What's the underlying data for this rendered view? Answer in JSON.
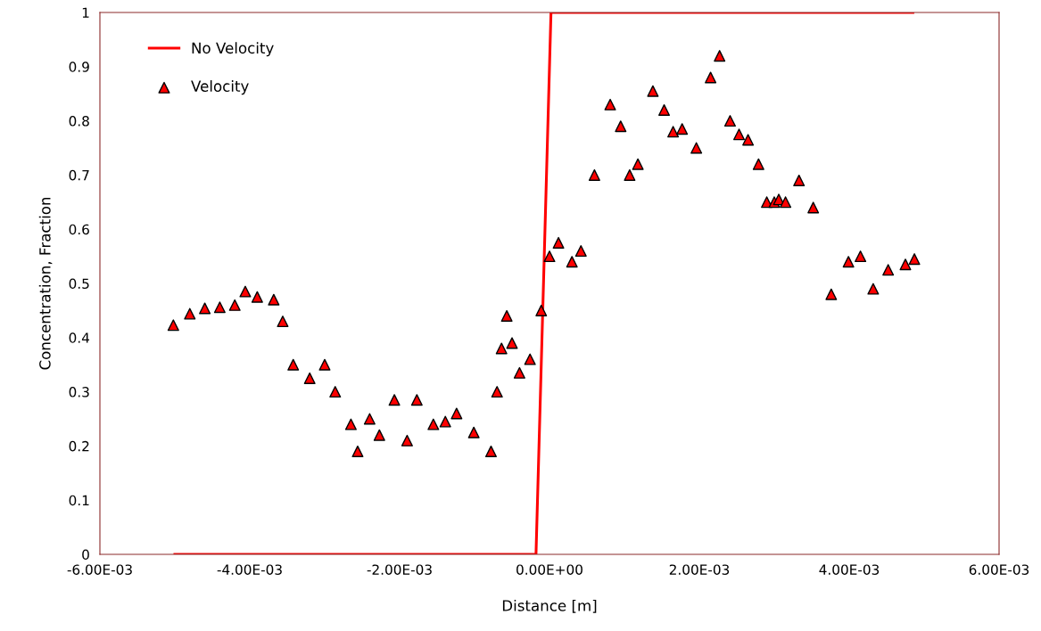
{
  "chart_data": {
    "type": "line",
    "xlabel": "Distance [m]",
    "ylabel": "Concentration, Fraction",
    "xlim": [
      -0.006,
      0.006
    ],
    "xticks": [
      {
        "value": -0.006,
        "label": "-6.00E-03"
      },
      {
        "value": -0.004,
        "label": "-4.00E-03"
      },
      {
        "value": -0.002,
        "label": "-2.00E-03"
      },
      {
        "value": 0,
        "label": "0.00E+00"
      },
      {
        "value": 0.002,
        "label": "2.00E-03"
      },
      {
        "value": 0.004,
        "label": "4.00E-03"
      },
      {
        "value": 0.006,
        "label": "6.00E-03"
      }
    ],
    "ylim": [
      0,
      1
    ],
    "yticks": [
      0,
      0.1,
      0.2,
      0.3,
      0.4,
      0.5,
      0.6,
      0.7,
      0.8,
      0.9,
      1
    ],
    "grid": false,
    "legend": "top left",
    "series": [
      {
        "name": "No Velocity",
        "color": "#ff0000",
        "marker": "none",
        "line_style": "solid",
        "x": [
          -0.005,
          -0.00018,
          2e-05,
          0.00485
        ],
        "values": [
          0,
          0,
          1,
          1
        ]
      },
      {
        "name": "Velocity",
        "type": "scatter",
        "color": "#ff0000",
        "marker": "triangle",
        "x": [
          -0.00502,
          -0.0048,
          -0.0046,
          -0.0044,
          -0.0042,
          -0.00406,
          -0.0039,
          -0.00368,
          -0.00356,
          -0.00342,
          -0.0032,
          -0.003,
          -0.00286,
          -0.00265,
          -0.00256,
          -0.0024,
          -0.00227,
          -0.00207,
          -0.0019,
          -0.00177,
          -0.00155,
          -0.00139,
          -0.00124,
          -0.00101,
          -0.00078,
          -0.0007,
          -0.00064,
          -0.00057,
          -0.0005,
          -0.0004,
          -0.00026,
          -0.00011,
          0.0,
          0.00012,
          0.0003,
          0.00042,
          0.0006,
          0.00081,
          0.00095,
          0.00107,
          0.00118,
          0.00138,
          0.00153,
          0.00165,
          0.00177,
          0.00196,
          0.00215,
          0.00227,
          0.00241,
          0.00253,
          0.00265,
          0.00279,
          0.0029,
          0.003,
          0.00306,
          0.00315,
          0.00333,
          0.00352,
          0.00376,
          0.00399,
          0.00415,
          0.00432,
          0.00452,
          0.00475,
          0.00487
        ],
        "values": [
          0.423,
          0.444,
          0.454,
          0.456,
          0.46,
          0.485,
          0.475,
          0.47,
          0.43,
          0.35,
          0.325,
          0.35,
          0.3,
          0.24,
          0.19,
          0.25,
          0.22,
          0.285,
          0.21,
          0.285,
          0.24,
          0.245,
          0.26,
          0.225,
          0.19,
          0.3,
          0.38,
          0.44,
          0.39,
          0.335,
          0.36,
          0.45,
          0.55,
          0.575,
          0.54,
          0.56,
          0.7,
          0.83,
          0.79,
          0.7,
          0.72,
          0.855,
          0.82,
          0.78,
          0.785,
          0.75,
          0.88,
          0.92,
          0.8,
          0.775,
          0.765,
          0.72,
          0.65,
          0.65,
          0.655,
          0.65,
          0.69,
          0.64,
          0.48,
          0.54,
          0.55,
          0.49,
          0.525,
          0.535,
          0.545
        ]
      }
    ]
  }
}
